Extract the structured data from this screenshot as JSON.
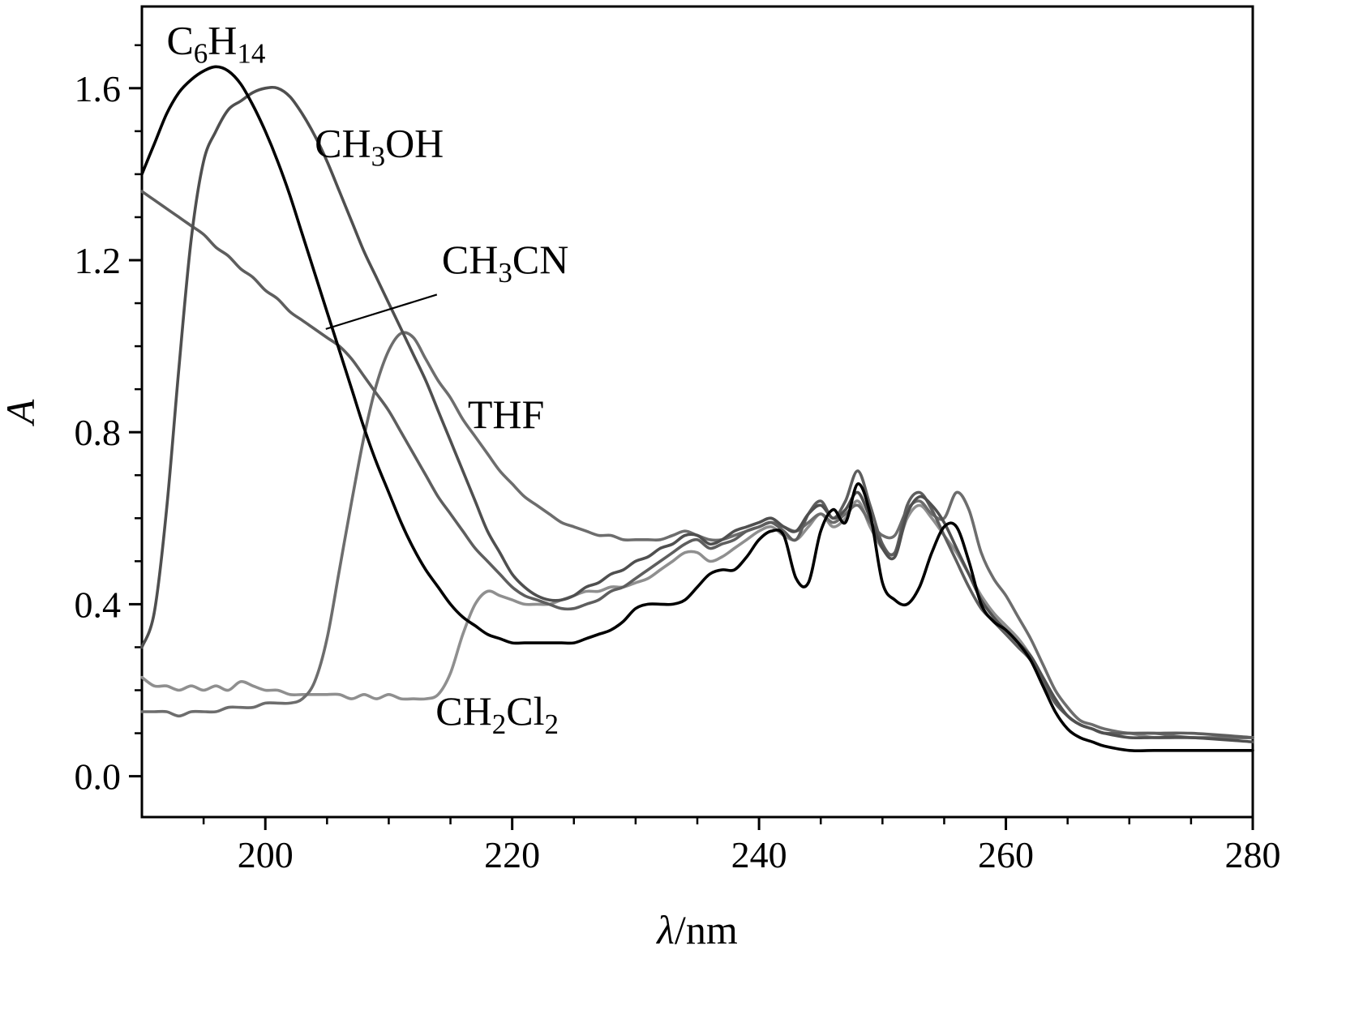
{
  "figure": {
    "background": "#ffffff",
    "frame_color": "#000000"
  },
  "chart_data": {
    "type": "line",
    "title": "",
    "xlabel": "λ/nm",
    "ylabel": "A",
    "xlabel_segments": [
      {
        "t": "λ",
        "italic": true
      },
      {
        "t": "/nm",
        "italic": false
      }
    ],
    "ylabel_segments": [
      {
        "t": "A",
        "italic": true
      }
    ],
    "xlim": [
      190,
      280
    ],
    "ylim": [
      -0.095,
      1.79
    ],
    "grid": false,
    "legend": "inline-labels",
    "x_major_ticks": [
      {
        "v": 200,
        "label": "200"
      },
      {
        "v": 220,
        "label": "220"
      },
      {
        "v": 240,
        "label": "240"
      },
      {
        "v": 260,
        "label": "260"
      },
      {
        "v": 280,
        "label": "280"
      }
    ],
    "x_minor_step": 5,
    "y_major_ticks": [
      {
        "v": 0.0,
        "label": "0.0"
      },
      {
        "v": 0.4,
        "label": "0.4"
      },
      {
        "v": 0.8,
        "label": "0.8"
      },
      {
        "v": 1.2,
        "label": "1.2"
      },
      {
        "v": 1.6,
        "label": "1.6"
      }
    ],
    "y_minor_step": 0.1,
    "x": [
      190,
      191,
      192,
      193,
      194,
      195,
      196,
      197,
      198,
      199,
      200,
      201,
      202,
      203,
      204,
      205,
      206,
      207,
      208,
      209,
      210,
      211,
      212,
      213,
      214,
      215,
      216,
      217,
      218,
      219,
      220,
      221,
      222,
      223,
      224,
      225,
      226,
      227,
      228,
      229,
      230,
      231,
      232,
      233,
      234,
      235,
      236,
      237,
      238,
      239,
      240,
      241,
      242,
      243,
      244,
      245,
      246,
      247,
      248,
      249,
      250,
      251,
      252,
      253,
      254,
      255,
      256,
      257,
      258,
      259,
      260,
      261,
      262,
      263,
      264,
      265,
      266,
      267,
      268,
      270,
      272,
      275,
      280
    ],
    "series": [
      {
        "name": "C6H14",
        "display": [
          {
            "t": "C"
          },
          {
            "t": "6",
            "sub": true
          },
          {
            "t": "H"
          },
          {
            "t": "14",
            "sub": true
          }
        ],
        "color": "#000000",
        "width": 3.6,
        "label_pos": {
          "x": 192.0,
          "y": 1.68
        },
        "y": [
          1.4,
          1.47,
          1.54,
          1.59,
          1.62,
          1.64,
          1.65,
          1.64,
          1.61,
          1.56,
          1.5,
          1.43,
          1.35,
          1.26,
          1.17,
          1.08,
          0.99,
          0.9,
          0.81,
          0.73,
          0.66,
          0.59,
          0.53,
          0.48,
          0.44,
          0.4,
          0.37,
          0.35,
          0.33,
          0.32,
          0.31,
          0.31,
          0.31,
          0.31,
          0.31,
          0.31,
          0.32,
          0.33,
          0.34,
          0.36,
          0.39,
          0.4,
          0.4,
          0.4,
          0.41,
          0.44,
          0.47,
          0.48,
          0.48,
          0.51,
          0.55,
          0.57,
          0.56,
          0.46,
          0.45,
          0.57,
          0.62,
          0.59,
          0.68,
          0.61,
          0.45,
          0.41,
          0.4,
          0.44,
          0.52,
          0.58,
          0.58,
          0.5,
          0.4,
          0.36,
          0.34,
          0.31,
          0.27,
          0.21,
          0.15,
          0.11,
          0.09,
          0.08,
          0.07,
          0.06,
          0.06,
          0.06,
          0.06
        ]
      },
      {
        "name": "CH3OH",
        "display": [
          {
            "t": "CH"
          },
          {
            "t": "3",
            "sub": true
          },
          {
            "t": "OH"
          }
        ],
        "color": "#4f4f4f",
        "width": 3.6,
        "label_pos": {
          "x": 204.0,
          "y": 1.44
        },
        "y": [
          0.3,
          0.38,
          0.62,
          0.95,
          1.25,
          1.43,
          1.5,
          1.55,
          1.57,
          1.59,
          1.6,
          1.6,
          1.58,
          1.54,
          1.49,
          1.43,
          1.36,
          1.29,
          1.22,
          1.16,
          1.1,
          1.04,
          0.98,
          0.92,
          0.85,
          0.78,
          0.71,
          0.64,
          0.57,
          0.52,
          0.47,
          0.44,
          0.42,
          0.41,
          0.41,
          0.42,
          0.44,
          0.45,
          0.47,
          0.48,
          0.5,
          0.51,
          0.53,
          0.54,
          0.56,
          0.56,
          0.54,
          0.55,
          0.57,
          0.58,
          0.59,
          0.6,
          0.58,
          0.57,
          0.61,
          0.63,
          0.6,
          0.62,
          0.66,
          0.6,
          0.53,
          0.51,
          0.61,
          0.65,
          0.63,
          0.59,
          0.53,
          0.47,
          0.41,
          0.37,
          0.34,
          0.31,
          0.28,
          0.23,
          0.18,
          0.14,
          0.12,
          0.11,
          0.1,
          0.09,
          0.09,
          0.09,
          0.08
        ]
      },
      {
        "name": "CH3CN",
        "display": [
          {
            "t": "CH"
          },
          {
            "t": "3",
            "sub": true
          },
          {
            "t": "CN"
          }
        ],
        "color": "#5e5e5e",
        "width": 3.6,
        "label_pos": {
          "x": 214.3,
          "y": 1.17
        },
        "leader": {
          "x1": 213.9,
          "y1": 1.12,
          "x2": 204.9,
          "y2": 1.04
        },
        "y": [
          1.36,
          1.34,
          1.32,
          1.3,
          1.28,
          1.26,
          1.23,
          1.21,
          1.18,
          1.16,
          1.13,
          1.11,
          1.08,
          1.06,
          1.04,
          1.02,
          1.0,
          0.97,
          0.93,
          0.89,
          0.85,
          0.8,
          0.75,
          0.7,
          0.65,
          0.61,
          0.57,
          0.53,
          0.5,
          0.47,
          0.44,
          0.42,
          0.41,
          0.4,
          0.39,
          0.39,
          0.4,
          0.41,
          0.43,
          0.44,
          0.46,
          0.48,
          0.5,
          0.52,
          0.54,
          0.55,
          0.53,
          0.54,
          0.55,
          0.57,
          0.58,
          0.59,
          0.57,
          0.55,
          0.61,
          0.64,
          0.6,
          0.64,
          0.71,
          0.63,
          0.54,
          0.52,
          0.63,
          0.66,
          0.62,
          0.56,
          0.5,
          0.44,
          0.39,
          0.36,
          0.33,
          0.3,
          0.27,
          0.22,
          0.17,
          0.14,
          0.12,
          0.11,
          0.1,
          0.1,
          0.1,
          0.1,
          0.09
        ]
      },
      {
        "name": "THF",
        "display": [
          {
            "t": "THF"
          }
        ],
        "color": "#6d6d6d",
        "width": 3.6,
        "label_pos": {
          "x": 216.4,
          "y": 0.81
        },
        "y": [
          0.15,
          0.15,
          0.15,
          0.14,
          0.15,
          0.15,
          0.15,
          0.16,
          0.16,
          0.16,
          0.17,
          0.17,
          0.17,
          0.18,
          0.22,
          0.32,
          0.48,
          0.64,
          0.79,
          0.91,
          0.99,
          1.03,
          1.02,
          0.97,
          0.92,
          0.88,
          0.83,
          0.79,
          0.75,
          0.71,
          0.68,
          0.65,
          0.63,
          0.61,
          0.59,
          0.58,
          0.57,
          0.56,
          0.56,
          0.55,
          0.55,
          0.55,
          0.55,
          0.56,
          0.57,
          0.56,
          0.55,
          0.55,
          0.56,
          0.57,
          0.58,
          0.59,
          0.58,
          0.57,
          0.59,
          0.61,
          0.59,
          0.61,
          0.63,
          0.59,
          0.56,
          0.56,
          0.62,
          0.64,
          0.61,
          0.6,
          0.66,
          0.62,
          0.52,
          0.46,
          0.42,
          0.37,
          0.32,
          0.26,
          0.2,
          0.16,
          0.13,
          0.12,
          0.11,
          0.1,
          0.1,
          0.09,
          0.09
        ]
      },
      {
        "name": "CH2Cl2",
        "display": [
          {
            "t": "CH"
          },
          {
            "t": "2",
            "sub": true
          },
          {
            "t": "Cl"
          },
          {
            "t": "2",
            "sub": true
          }
        ],
        "color": "#8f8f8f",
        "width": 3.6,
        "label_pos": {
          "x": 213.8,
          "y": 0.12
        },
        "y": [
          0.23,
          0.21,
          0.21,
          0.2,
          0.21,
          0.2,
          0.21,
          0.2,
          0.22,
          0.21,
          0.2,
          0.2,
          0.19,
          0.19,
          0.19,
          0.19,
          0.19,
          0.18,
          0.19,
          0.18,
          0.19,
          0.18,
          0.18,
          0.18,
          0.19,
          0.24,
          0.33,
          0.4,
          0.43,
          0.42,
          0.41,
          0.4,
          0.4,
          0.4,
          0.41,
          0.42,
          0.43,
          0.43,
          0.44,
          0.44,
          0.45,
          0.46,
          0.48,
          0.5,
          0.52,
          0.52,
          0.5,
          0.51,
          0.53,
          0.55,
          0.57,
          0.58,
          0.56,
          0.55,
          0.58,
          0.61,
          0.58,
          0.6,
          0.64,
          0.58,
          0.53,
          0.52,
          0.6,
          0.63,
          0.6,
          0.56,
          0.52,
          0.47,
          0.42,
          0.38,
          0.35,
          0.32,
          0.28,
          0.23,
          0.18,
          0.14,
          0.12,
          0.11,
          0.1,
          0.1,
          0.09,
          0.09,
          0.09
        ]
      }
    ]
  }
}
